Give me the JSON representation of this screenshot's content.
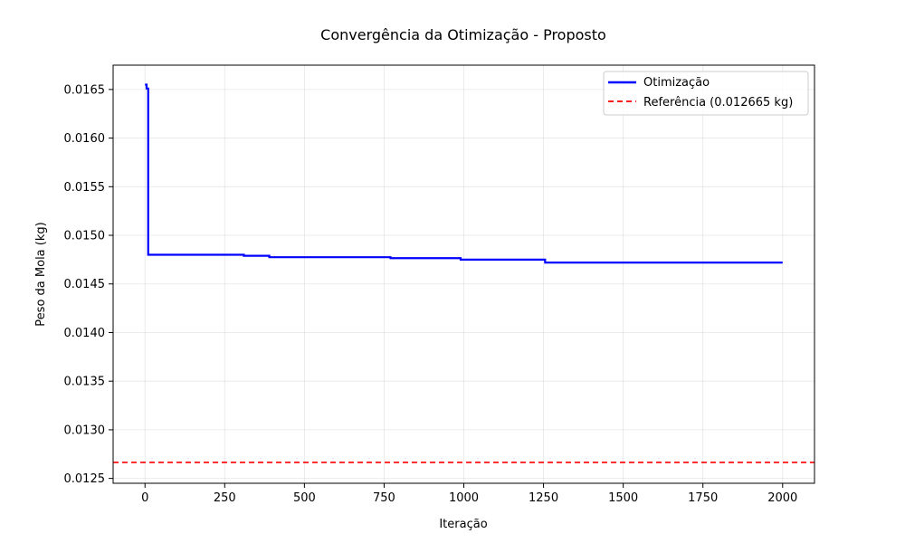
{
  "chart_data": {
    "type": "line",
    "title": "Convergência da Otimização - Proposto",
    "xlabel": "Iteração",
    "ylabel": "Peso da Mola (kg)",
    "xlim": [
      -100,
      2100
    ],
    "ylim": [
      0.01245,
      0.01675
    ],
    "xticks": [
      0,
      250,
      500,
      750,
      1000,
      1250,
      1500,
      1750,
      2000
    ],
    "xtick_labels": [
      "0",
      "250",
      "500",
      "750",
      "1000",
      "1250",
      "1500",
      "1750",
      "2000"
    ],
    "yticks": [
      0.0125,
      0.013,
      0.0135,
      0.014,
      0.0145,
      0.015,
      0.0155,
      0.016,
      0.0165
    ],
    "ytick_labels": [
      "0.0125",
      "0.0130",
      "0.0135",
      "0.0140",
      "0.0145",
      "0.0150",
      "0.0155",
      "0.0160",
      "0.0165"
    ],
    "grid": true,
    "legend_position": "top-right",
    "series": [
      {
        "name": "Otimização",
        "style": "solid",
        "color": "#0000ff",
        "x": [
          0,
          5,
          5,
          10,
          10,
          310,
          310,
          390,
          390,
          770,
          770,
          990,
          990,
          1255,
          1255,
          2000
        ],
        "y": [
          0.01655,
          0.01655,
          0.01651,
          0.01651,
          0.0148,
          0.0148,
          0.01479,
          0.01479,
          0.014775,
          0.014775,
          0.014765,
          0.014765,
          0.01475,
          0.01475,
          0.01472,
          0.01472
        ]
      },
      {
        "name": "Referência (0.012665 kg)",
        "style": "dashed",
        "color": "#ff0000",
        "y_constant": 0.012665
      }
    ]
  }
}
